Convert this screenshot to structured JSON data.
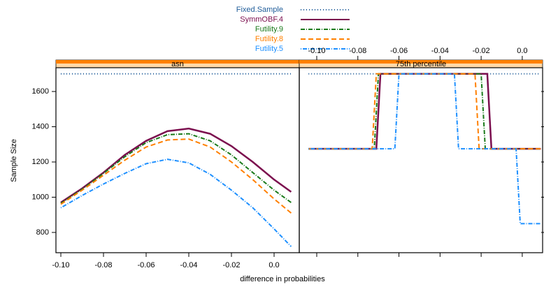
{
  "chart_data": {
    "type": "line",
    "xlabel": "difference in probabilities",
    "ylabel": "Sample Size",
    "ylim": [
      685,
      1735
    ],
    "yticks": [
      800,
      1000,
      1200,
      1400,
      1600
    ],
    "series": [
      {
        "name": "Fixed.Sample",
        "color": "#1f5c99",
        "dash": "1,3"
      },
      {
        "name": "SymmOBF.4",
        "color": "#7b0e4e",
        "dash": "none"
      },
      {
        "name": "Futility.9",
        "color": "#1a7a1a",
        "dash": "6,2,1,2"
      },
      {
        "name": "Futility.8",
        "color": "#ff8000",
        "dash": "7,4"
      },
      {
        "name": "Futility.5",
        "color": "#1e90ff",
        "dash": "1,2,6,2"
      }
    ],
    "panels": [
      {
        "title": "asn",
        "xlim": [
          -0.1023,
          0.0118
        ],
        "xticks": [
          {
            "value": -0.1,
            "label": "-0.10"
          },
          -0.08,
          -0.06,
          -0.04,
          -0.02,
          {
            "value": 0,
            "label": "0.0"
          }
        ],
        "lines": [
          {
            "x": [
              -0.1,
              0.008
            ],
            "values": [
              1700,
              1700
            ]
          },
          {
            "x": [
              -0.1,
              -0.09,
              -0.08,
              -0.07,
              -0.06,
              -0.05,
              -0.04,
              -0.03,
              -0.02,
              -0.01,
              0,
              0.008
            ],
            "values": [
              970,
              1050,
              1140,
              1240,
              1320,
              1375,
              1390,
              1360,
              1290,
              1200,
              1100,
              1030
            ]
          },
          {
            "x": [
              -0.1,
              -0.09,
              -0.08,
              -0.07,
              -0.06,
              -0.05,
              -0.04,
              -0.03,
              -0.02,
              -0.01,
              0,
              0.008
            ],
            "values": [
              965,
              1045,
              1135,
              1230,
              1310,
              1355,
              1360,
              1320,
              1240,
              1140,
              1040,
              970
            ]
          },
          {
            "x": [
              -0.1,
              -0.09,
              -0.08,
              -0.07,
              -0.06,
              -0.05,
              -0.04,
              -0.03,
              -0.02,
              -0.01,
              0,
              0.008
            ],
            "values": [
              960,
              1040,
              1125,
              1210,
              1285,
              1325,
              1330,
              1285,
              1200,
              1100,
              990,
              910
            ]
          },
          {
            "x": [
              -0.1,
              -0.09,
              -0.08,
              -0.07,
              -0.06,
              -0.05,
              -0.04,
              -0.03,
              -0.02,
              -0.01,
              0,
              0.008
            ],
            "values": [
              940,
              1010,
              1075,
              1135,
              1190,
              1215,
              1195,
              1130,
              1040,
              940,
              820,
              720
            ]
          }
        ]
      },
      {
        "title": "75th percentile",
        "xlim": [
          -0.1085,
          0.0099
        ],
        "xticks": [
          {
            "value": -0.1,
            "label": "-0.10"
          },
          -0.08,
          -0.06,
          -0.04,
          -0.02,
          {
            "value": 0,
            "label": "0.0"
          }
        ],
        "lines": [
          {
            "x": [
              -0.104,
              0.008
            ],
            "values": [
              1700,
              1700
            ]
          },
          {
            "x": [
              -0.104,
              -0.071,
              -0.069,
              -0.017,
              -0.015,
              0.009
            ],
            "values": [
              1275,
              1275,
              1700,
              1700,
              1275,
              1275
            ]
          },
          {
            "x": [
              -0.104,
              -0.072,
              -0.07,
              -0.02,
              -0.018,
              0.009
            ],
            "values": [
              1275,
              1275,
              1700,
              1700,
              1275,
              1275
            ]
          },
          {
            "x": [
              -0.104,
              -0.073,
              -0.071,
              -0.023,
              -0.021,
              0.009
            ],
            "values": [
              1275,
              1275,
              1700,
              1700,
              1275,
              1275
            ]
          },
          {
            "x": [
              -0.104,
              -0.062,
              -0.06,
              -0.033,
              -0.031,
              -0.003,
              -0.001,
              0.009
            ],
            "values": [
              1275,
              1275,
              1700,
              1700,
              1275,
              1275,
              850,
              850
            ]
          }
        ]
      }
    ]
  }
}
